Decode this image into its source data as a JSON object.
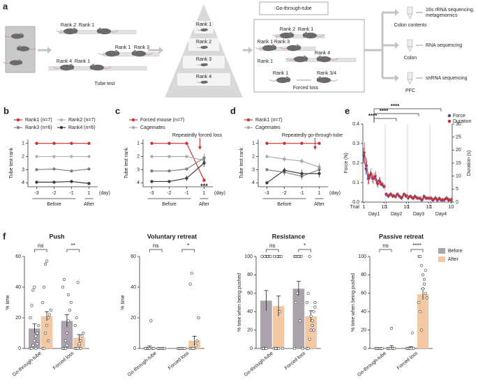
{
  "panel_a": {
    "letter": "a",
    "tube_test": {
      "labels": [
        "Rank 2",
        "Rank 1",
        "Rank 1",
        "Rank 3",
        "Rank 4",
        "Rank 1"
      ],
      "caption": "Tube test"
    },
    "pyramid": [
      "Rank 1",
      "Rank 2",
      "Rank 3",
      "Rank 4"
    ],
    "box": {
      "top": "Go-through-tube",
      "labels": [
        "Rank 2",
        "Rank 1",
        "Rank 1",
        "Rank 3",
        "Rank 4",
        "Rank 1",
        "Rank 1",
        "Rank 3/4"
      ],
      "caption": "Forced loss"
    },
    "outputs": [
      {
        "sample": "Colon contents",
        "assay": [
          "16s rRNA sequencing,",
          "metagenomics"
        ]
      },
      {
        "sample": "Colon",
        "assay": [
          "RNA sequencing"
        ]
      },
      {
        "sample": "PFC",
        "assay": [
          "snRNA sequencing"
        ]
      }
    ]
  },
  "chart_data": [
    {
      "type": "line",
      "letter": "b",
      "ylabel": "Tube test rank",
      "categories": [
        -3,
        -2,
        -1,
        1
      ],
      "xunit": "(day)",
      "groups": [
        "Before",
        "After"
      ],
      "ylim": [
        0.7,
        4.3
      ],
      "inverted": true,
      "yticks": [
        1,
        2,
        3,
        4
      ],
      "series": [
        {
          "name": "Rank1 (n=7)",
          "color": "#d0312d",
          "values": [
            1,
            1,
            1,
            1
          ],
          "errors": [
            0,
            0,
            0,
            0
          ]
        },
        {
          "name": "Rank2 (n=7)",
          "color": "#b0b0b0",
          "values": [
            2,
            2,
            2,
            2
          ],
          "errors": [
            0,
            0,
            0,
            0
          ]
        },
        {
          "name": "Rank3 (n=6)",
          "color": "#808080",
          "values": [
            3,
            2.95,
            3.1,
            2.95
          ],
          "errors": [
            0.08,
            0.08,
            0.1,
            0.08
          ]
        },
        {
          "name": "Rank4 (n=6)",
          "color": "#3a3a3a",
          "values": [
            3.95,
            3.95,
            3.9,
            4.05
          ],
          "errors": [
            0.1,
            0.1,
            0.1,
            0.05
          ]
        }
      ]
    },
    {
      "type": "line",
      "letter": "c",
      "ylabel": "Tube test rank",
      "categories": [
        -3,
        -2,
        -1,
        1
      ],
      "xunit": "(day)",
      "groups": [
        "Before",
        "After"
      ],
      "ylim": [
        0.7,
        4.3
      ],
      "inverted": true,
      "yticks": [
        1,
        2,
        3,
        4
      ],
      "annotations": [
        "Repeatedly forced loss",
        "***"
      ],
      "series": [
        {
          "name": "Forced mouse (n=7)",
          "color": "#d0312d",
          "values": [
            1,
            1,
            1,
            3.8
          ],
          "errors": [
            0,
            0,
            0,
            0.15
          ]
        },
        {
          "name": "Cagemates",
          "color": "#a8a8a8",
          "values": [
            2,
            2,
            2,
            2.3
          ],
          "errors": [
            0.05,
            0.05,
            0.05,
            0.2
          ]
        },
        {
          "color": "#808080",
          "values": [
            3.1,
            3.1,
            2.95,
            2.1
          ],
          "errors": [
            0.1,
            0.1,
            0.1,
            0.3
          ]
        },
        {
          "color": "#404040",
          "values": [
            3.9,
            3.9,
            3.65,
            2.5
          ],
          "errors": [
            0.1,
            0.1,
            0.2,
            0.3
          ]
        }
      ]
    },
    {
      "type": "line",
      "letter": "d",
      "ylabel": "Tube test rank",
      "categories": [
        -3,
        -2,
        -1,
        1
      ],
      "xunit": "(day)",
      "groups": [
        "Before",
        "After"
      ],
      "ylim": [
        0.7,
        4.3
      ],
      "inverted": true,
      "yticks": [
        1,
        2,
        3,
        4
      ],
      "annotations": [
        "Repeatedly go-through-tube"
      ],
      "series": [
        {
          "name": "Rank1 (n=7)",
          "color": "#d0312d",
          "values": [
            1,
            1,
            1,
            1
          ],
          "errors": [
            0,
            0,
            0,
            0
          ]
        },
        {
          "name": "Cagemates",
          "color": "#a8a8a8",
          "values": [
            2,
            2.2,
            2.35,
            2.8
          ],
          "errors": [
            0.1,
            0.2,
            0.2,
            0.3
          ]
        },
        {
          "color": "#808080",
          "values": [
            3,
            3.2,
            3.5,
            3.0
          ],
          "errors": [
            0.1,
            0.25,
            0.25,
            0.3
          ]
        },
        {
          "color": "#404040",
          "values": [
            4,
            3.05,
            3.3,
            3.3
          ],
          "errors": [
            0,
            0.2,
            0.3,
            0.3
          ]
        }
      ]
    },
    {
      "type": "dual",
      "letter": "e",
      "ylabel": "Force (N)",
      "y2label": "Duration (s)",
      "xlabel": "Trial",
      "categories": [
        1,
        null,
        null,
        null,
        null,
        null,
        null,
        null,
        null,
        10,
        1,
        null,
        null,
        null,
        null,
        null,
        null,
        null,
        null,
        10,
        1,
        null,
        null,
        null,
        null,
        null,
        null,
        null,
        null,
        10,
        1,
        null,
        null,
        null,
        null,
        null,
        null,
        null,
        null,
        10
      ],
      "days": [
        "Day1",
        "Day2",
        "Day3",
        "Day4"
      ],
      "ylim": [
        0,
        0.4
      ],
      "yticks": [
        {
          "value": 0,
          "label": "0.0"
        },
        0.1,
        0.2,
        0.3,
        0.4
      ],
      "y2lim": [
        0,
        30
      ],
      "y2ticks": [
        0,
        5,
        10,
        15,
        20,
        25,
        30
      ],
      "significance": [
        "****",
        "****",
        "****"
      ],
      "series": [
        {
          "name": "Force",
          "color": "#4b4ba8",
          "values": [
            0.24,
            0.17,
            0.12,
            0.14,
            0.12,
            0.13,
            0.1,
            0.11,
            0.09,
            0.08,
            0.04,
            0.03,
            0.04,
            0.03,
            0.03,
            0.04,
            0.03,
            0.02,
            0.04,
            0.03,
            0.02,
            0.03,
            0.02,
            0.03,
            0.02,
            0.02,
            0.01,
            0.03,
            0.02,
            0.02,
            0.02,
            0.01,
            0.02,
            0.01,
            0.02,
            0.01,
            0.01,
            0.02,
            0.01,
            0.01
          ],
          "errors": [
            0.04,
            0.03,
            0.03,
            0.02,
            0.02,
            0.02,
            0.02,
            0.02,
            0.01,
            0.01,
            0.01,
            0.01,
            0.01,
            0.01,
            0.01,
            0.01,
            0.01,
            0.01,
            0.01,
            0.01,
            0.01,
            0.01,
            0.01,
            0.01,
            0.01,
            0.01,
            0.01,
            0.01,
            0.01,
            0.01,
            0.01,
            0.01,
            0.01,
            0.01,
            0.01,
            0.01,
            0.01,
            0.01,
            0.01,
            0.01
          ]
        },
        {
          "name": "Duration",
          "color": "#d0312d",
          "axis": "y2",
          "values": [
            19,
            14,
            9,
            11,
            9,
            10,
            7,
            8,
            7,
            6,
            3,
            2.5,
            3,
            2.5,
            2,
            3,
            2,
            2,
            3,
            2.5,
            2,
            2,
            1.5,
            2,
            1.5,
            1.5,
            1,
            2,
            1.5,
            1.5,
            1.5,
            1,
            1.5,
            1,
            1,
            1,
            1,
            1.5,
            1,
            1
          ],
          "errors": [
            4,
            3,
            2,
            2,
            2,
            2,
            1.5,
            1.5,
            1,
            1,
            0.8,
            0.8,
            0.8,
            0.8,
            0.8,
            0.8,
            0.8,
            0.8,
            0.8,
            0.8,
            0.8,
            0.8,
            0.8,
            0.8,
            0.8,
            0.8,
            0.8,
            0.8,
            0.8,
            0.8,
            0.8,
            0.8,
            0.8,
            0.8,
            0.8,
            0.8,
            0.8,
            0.8,
            0.8,
            0.8
          ]
        }
      ]
    },
    {
      "type": "bar",
      "letter": "f",
      "title": "Push",
      "ylabel": "% time",
      "ylim": [
        0,
        60
      ],
      "yticks": [
        0,
        20,
        40,
        60
      ],
      "categories": [
        "Go-through-tube",
        "Forced loss"
      ],
      "significance": [
        "ns",
        "**"
      ],
      "series": [
        {
          "color": "#aaa3ab",
          "values": [
            13,
            18
          ],
          "errors": [
            3,
            4
          ],
          "points": [
            [
              0,
              0,
              2,
              5,
              8,
              10,
              15,
              20,
              28,
              38,
              40,
              0,
              3
            ],
            [
              0,
              0,
              5,
              10,
              18,
              25,
              30,
              40,
              45,
              0,
              2,
              35
            ]
          ]
        },
        {
          "color": "#f2c9a2",
          "values": [
            21,
            7
          ],
          "errors": [
            3,
            2
          ],
          "points": [
            [
              0,
              0,
              10,
              15,
              20,
              22,
              25,
              30,
              40,
              55,
              57,
              5
            ],
            [
              0,
              0,
              0,
              2,
              5,
              8,
              10,
              15,
              20,
              43,
              3,
              0
            ]
          ]
        }
      ]
    },
    {
      "type": "bar",
      "title": "Voluntary retreat",
      "ylabel": "% time",
      "ylim": [
        0,
        60
      ],
      "yticks": [
        0,
        20,
        40,
        60
      ],
      "categories": [
        "Go-through-tube",
        "Forced loss"
      ],
      "significance": [
        "ns",
        "*"
      ],
      "series": [
        {
          "color": "#aaa3ab",
          "values": [
            0.8,
            0.3
          ],
          "errors": [
            0.8,
            0.3
          ],
          "points": [
            [
              0,
              0,
              0,
              0,
              18,
              0,
              0,
              0
            ],
            [
              0,
              0,
              0,
              0,
              0,
              0
            ]
          ]
        },
        {
          "color": "#f2c9a2",
          "values": [
            0.3,
            5
          ],
          "errors": [
            0.3,
            3
          ],
          "points": [
            [
              0,
              0,
              0,
              0,
              0,
              0
            ],
            [
              0,
              0,
              0,
              0,
              2,
              5,
              20,
              42,
              49,
              0
            ]
          ]
        }
      ]
    },
    {
      "type": "bar",
      "title": "Resistance",
      "ylabel": "% time when being pushed",
      "ylim": [
        0,
        100
      ],
      "yticks": [
        0,
        20,
        40,
        60,
        80,
        100
      ],
      "categories": [
        "Go-through-tube",
        "Forced loss"
      ],
      "significance": [
        "ns",
        "*"
      ],
      "series": [
        {
          "color": "#aaa3ab",
          "values": [
            52,
            65
          ],
          "errors": [
            11,
            8
          ],
          "points": [
            [
              0,
              0,
              0,
              100,
              100,
              100,
              100,
              100,
              0,
              100,
              0,
              100
            ],
            [
              100,
              100,
              100,
              100,
              100,
              100,
              0,
              0,
              50,
              60,
              100,
              30
            ]
          ]
        },
        {
          "color": "#f2c9a2",
          "values": [
            46,
            35
          ],
          "errors": [
            11,
            6
          ],
          "points": [
            [
              0,
              0,
              0,
              100,
              100,
              100,
              0,
              100,
              0,
              100,
              0,
              40
            ],
            [
              0,
              0,
              10,
              20,
              30,
              40,
              45,
              50,
              60,
              100,
              35,
              25,
              20,
              50
            ]
          ]
        }
      ]
    },
    {
      "type": "bar",
      "title": "Passive  retreat",
      "ylabel": "% time when being pushed",
      "ylim": [
        0,
        100
      ],
      "yticks": [
        0,
        20,
        40,
        60,
        80,
        100
      ],
      "categories": [
        "Go-through-tube",
        "Forced loss"
      ],
      "significance": [
        "ns",
        "****"
      ],
      "series": [
        {
          "name": "Before",
          "color": "#aaa3ab",
          "values": [
            0.5,
            1
          ],
          "errors": [
            0.5,
            1
          ],
          "points": [
            [
              0,
              0,
              0,
              0,
              0,
              0
            ],
            [
              0,
              0,
              0,
              0,
              17,
              0
            ]
          ]
        },
        {
          "name": "After",
          "color": "#f2c9a2",
          "values": [
            1.5,
            59
          ],
          "errors": [
            1.5,
            6
          ],
          "points": [
            [
              0,
              0,
              0,
              22,
              0,
              0
            ],
            [
              100,
              100,
              90,
              80,
              70,
              60,
              55,
              50,
              40,
              20,
              65,
              75,
              85
            ]
          ]
        }
      ]
    }
  ]
}
